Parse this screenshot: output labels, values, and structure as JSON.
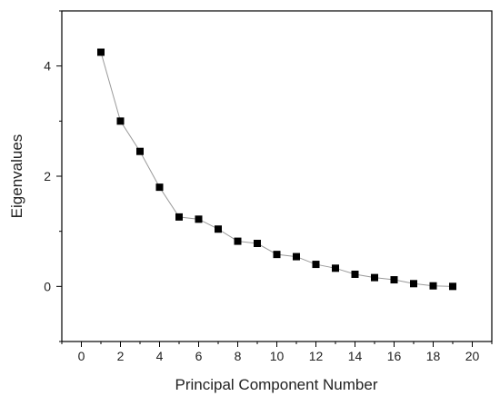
{
  "chart_data": {
    "type": "scatter",
    "title": "",
    "xlabel": "Principal Component Number",
    "ylabel": "Eigenvalues",
    "xlim": [
      -1,
      21
    ],
    "ylim": [
      -1,
      5
    ],
    "x_ticks": [
      0,
      2,
      4,
      6,
      8,
      10,
      12,
      14,
      16,
      18,
      20
    ],
    "y_ticks": [
      0,
      2,
      4
    ],
    "x_tick_labels": [
      "0",
      "2",
      "4",
      "6",
      "8",
      "10",
      "12",
      "14",
      "16",
      "18",
      "20"
    ],
    "y_tick_labels": [
      "0",
      "2",
      "4"
    ],
    "grid": false,
    "legend": "none",
    "series": [
      {
        "marker": "square",
        "connected": true,
        "line_color": "#999999",
        "marker_color": "#000000",
        "x": [
          1,
          2,
          3,
          4,
          5,
          6,
          7,
          8,
          9,
          10,
          11,
          12,
          13,
          14,
          15,
          16,
          17,
          18,
          19
        ],
        "y": [
          4.25,
          3.0,
          2.45,
          1.8,
          1.26,
          1.22,
          1.04,
          0.82,
          0.78,
          0.58,
          0.54,
          0.4,
          0.33,
          0.22,
          0.16,
          0.12,
          0.05,
          0.01,
          0.0
        ]
      }
    ]
  }
}
